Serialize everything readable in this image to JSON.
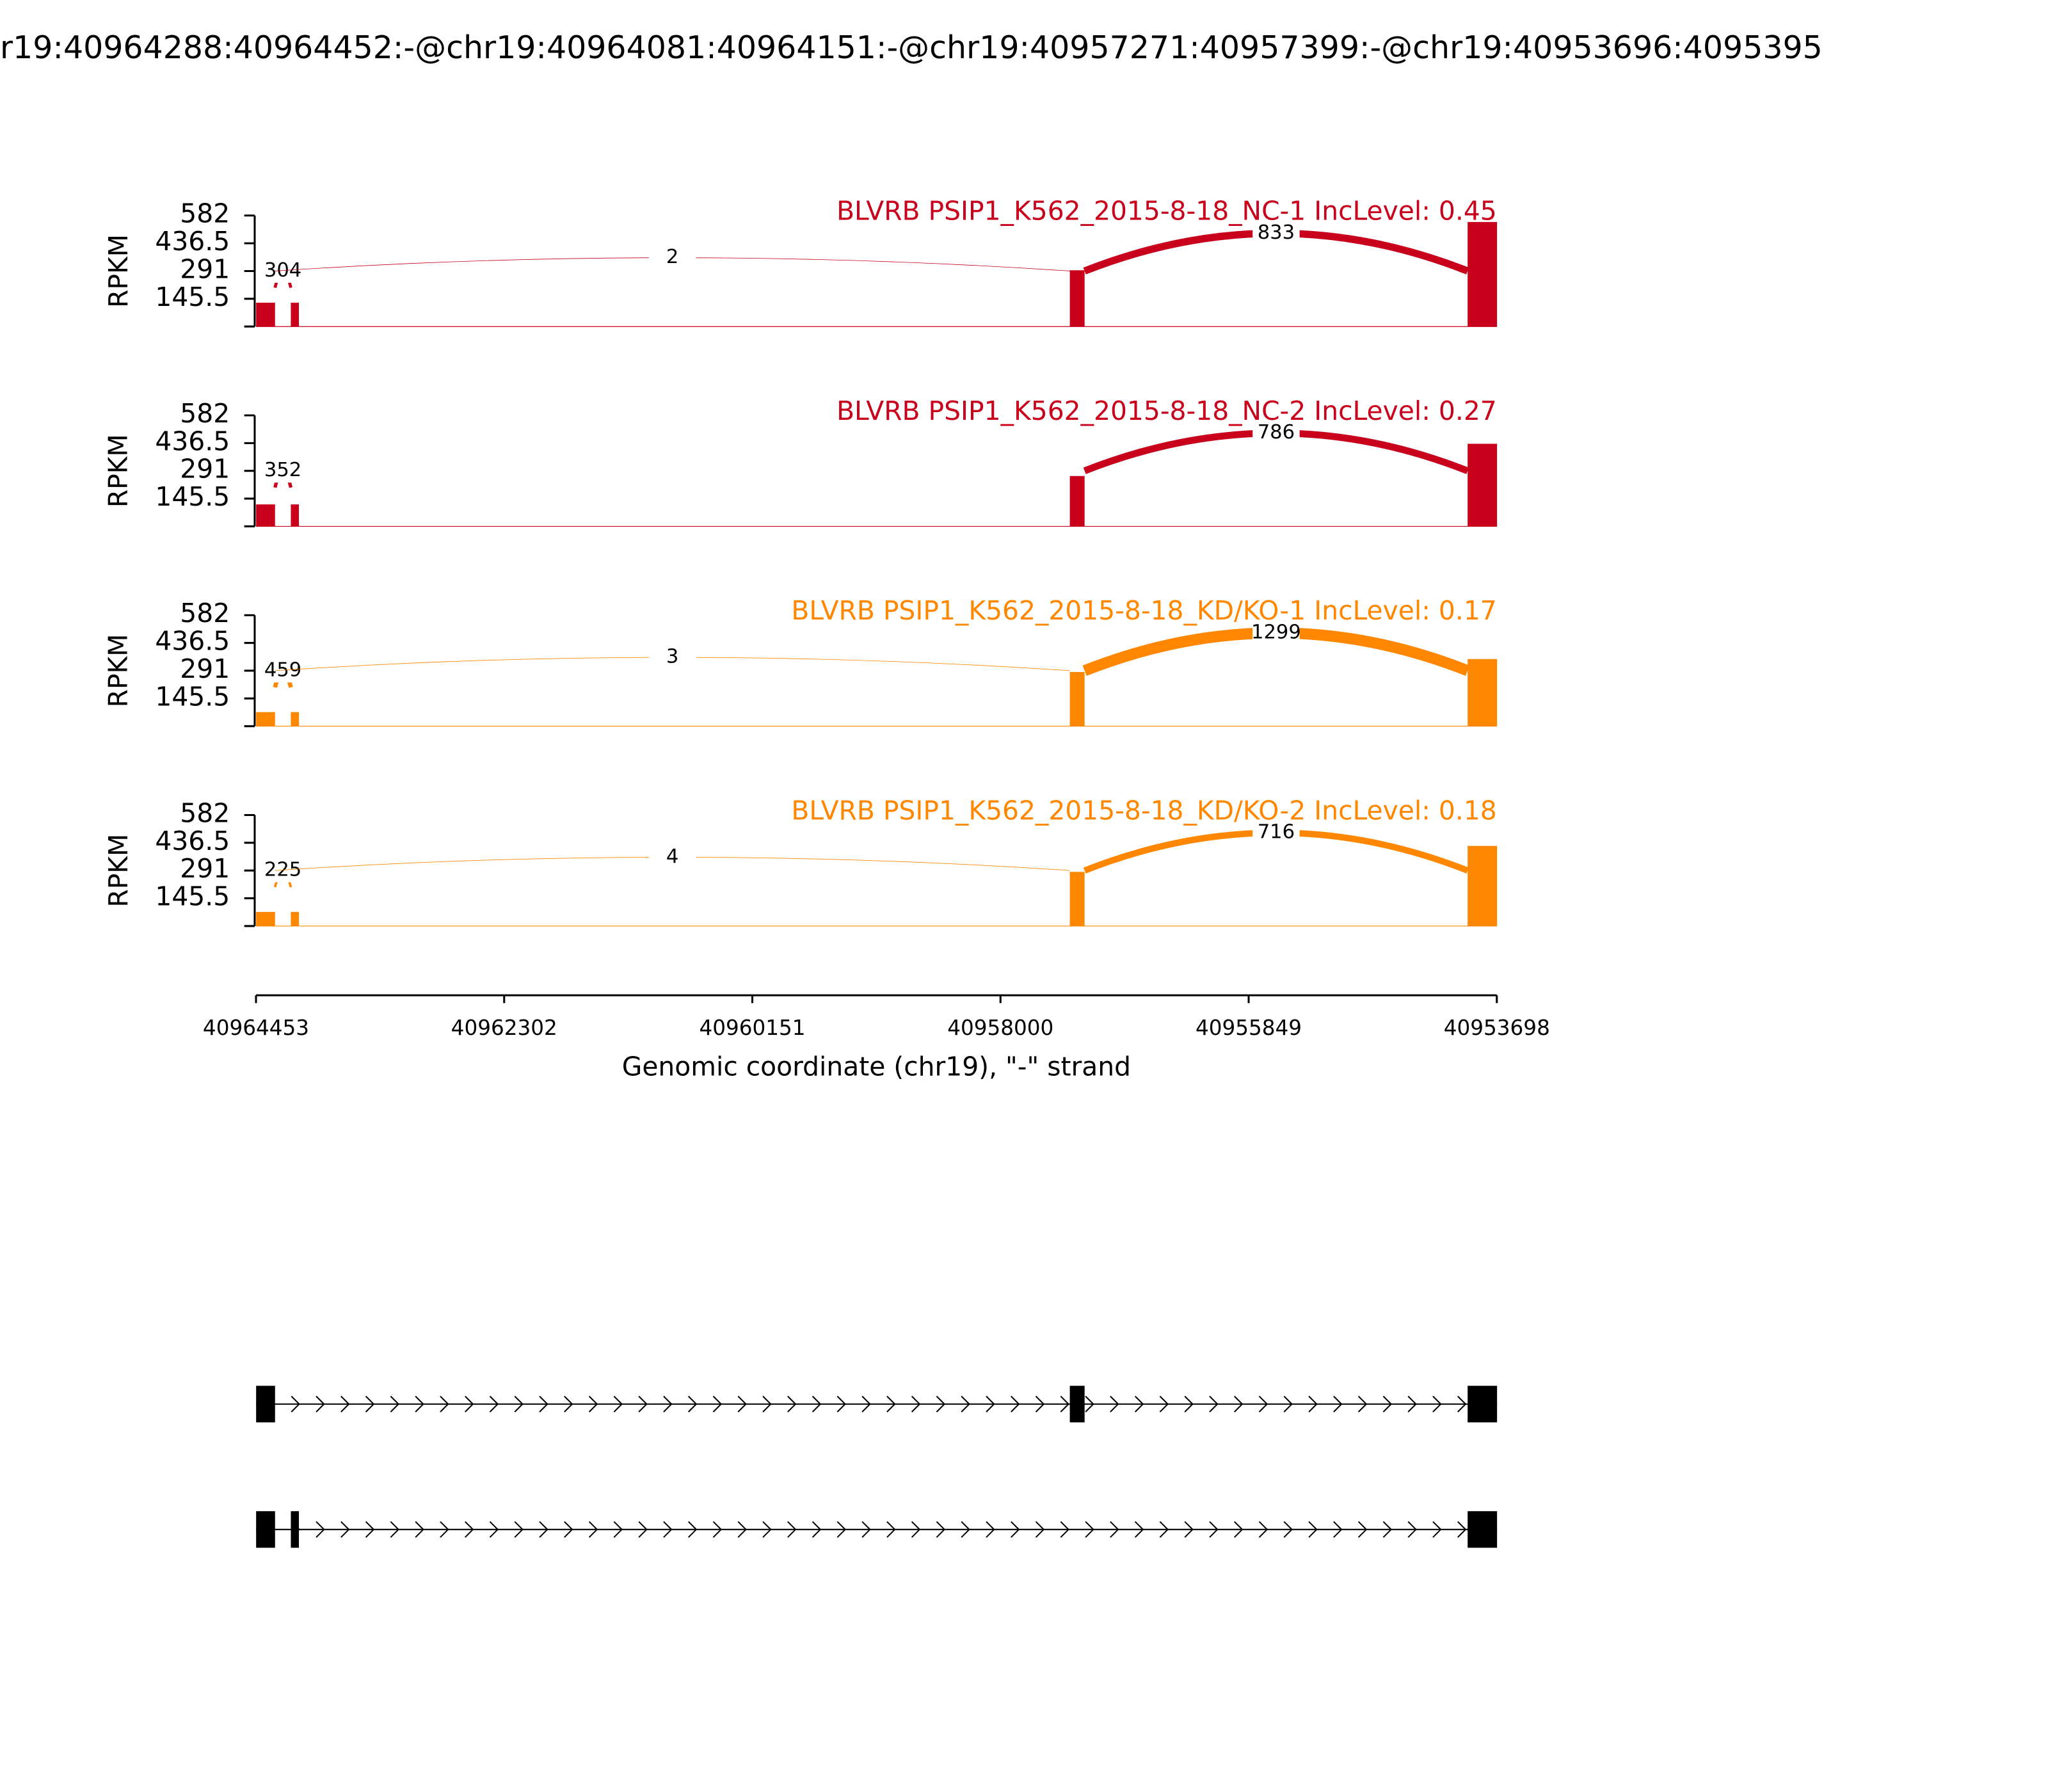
{
  "chart_data": {
    "type": "sashimi",
    "title": "r19:40964288:40964452:-@chr19:40964081:40964151:-@chr19:40957271:40957399:-@chr19:40953696:4095395",
    "x_label": "Genomic coordinate (chr19), \"-\" strand",
    "xlim": [
      40964453,
      40953698
    ],
    "xticks": [
      40964453,
      40962302,
      40960151,
      40958000,
      40955849,
      40953698
    ],
    "panels": [
      {
        "name": "BLVRB PSIP1_K562_2015-8-18_NC-1 IncLevel: 0.45",
        "color": "#c8001b",
        "y_label": "RPKM",
        "ylim": [
          0,
          582
        ],
        "yticks": [
          145.5,
          291,
          436.5,
          582
        ],
        "coverage": [
          {
            "start": 40964452,
            "end": 40964288,
            "value": 125
          },
          {
            "start": 40964151,
            "end": 40964081,
            "value": 125
          },
          {
            "start": 40957399,
            "end": 40957271,
            "value": 295
          },
          {
            "start": 40953951,
            "end": 40953696,
            "value": 548
          }
        ],
        "junctions": [
          {
            "start": 40964288,
            "end": 40964151,
            "count": 304
          },
          {
            "start": 40964288,
            "end": 40957399,
            "count": 2
          },
          {
            "start": 40957271,
            "end": 40953951,
            "count": 833
          }
        ]
      },
      {
        "name": "BLVRB PSIP1_K562_2015-8-18_NC-2 IncLevel: 0.27",
        "color": "#c8001b",
        "y_label": "RPKM",
        "ylim": [
          0,
          582
        ],
        "yticks": [
          145.5,
          291,
          436.5,
          582
        ],
        "coverage": [
          {
            "start": 40964452,
            "end": 40964288,
            "value": 115
          },
          {
            "start": 40964151,
            "end": 40964081,
            "value": 115
          },
          {
            "start": 40957399,
            "end": 40957271,
            "value": 264
          },
          {
            "start": 40953951,
            "end": 40953696,
            "value": 433
          }
        ],
        "junctions": [
          {
            "start": 40964288,
            "end": 40964151,
            "count": 352
          },
          {
            "start": 40957271,
            "end": 40953951,
            "count": 786
          }
        ]
      },
      {
        "name": "BLVRB PSIP1_K562_2015-8-18_KD/KO-1 IncLevel: 0.17",
        "color": "#ff8700",
        "y_label": "RPKM",
        "ylim": [
          0,
          582
        ],
        "yticks": [
          145.5,
          291,
          436.5,
          582
        ],
        "coverage": [
          {
            "start": 40964452,
            "end": 40964288,
            "value": 74
          },
          {
            "start": 40964151,
            "end": 40964081,
            "value": 74
          },
          {
            "start": 40957399,
            "end": 40957271,
            "value": 284
          },
          {
            "start": 40953951,
            "end": 40953696,
            "value": 352
          }
        ],
        "junctions": [
          {
            "start": 40964288,
            "end": 40964151,
            "count": 459
          },
          {
            "start": 40964288,
            "end": 40957399,
            "count": 3
          },
          {
            "start": 40957271,
            "end": 40953951,
            "count": 1299
          }
        ]
      },
      {
        "name": "BLVRB PSIP1_K562_2015-8-18_KD/KO-2 IncLevel: 0.18",
        "color": "#ff8700",
        "y_label": "RPKM",
        "ylim": [
          0,
          582
        ],
        "yticks": [
          145.5,
          291,
          436.5,
          582
        ],
        "coverage": [
          {
            "start": 40964452,
            "end": 40964288,
            "value": 74
          },
          {
            "start": 40964151,
            "end": 40964081,
            "value": 74
          },
          {
            "start": 40957399,
            "end": 40957271,
            "value": 284
          },
          {
            "start": 40953951,
            "end": 40953696,
            "value": 420
          }
        ],
        "junctions": [
          {
            "start": 40964288,
            "end": 40964151,
            "count": 225
          },
          {
            "start": 40964288,
            "end": 40957399,
            "count": 4
          },
          {
            "start": 40957271,
            "end": 40953951,
            "count": 716
          }
        ]
      }
    ],
    "transcripts": [
      {
        "exons": [
          [
            40964452,
            40964288
          ],
          [
            40957399,
            40957271
          ],
          [
            40953951,
            40953696
          ]
        ]
      },
      {
        "exons": [
          [
            40964452,
            40964288
          ],
          [
            40964151,
            40964081
          ],
          [
            40953951,
            40953696
          ]
        ]
      }
    ]
  }
}
